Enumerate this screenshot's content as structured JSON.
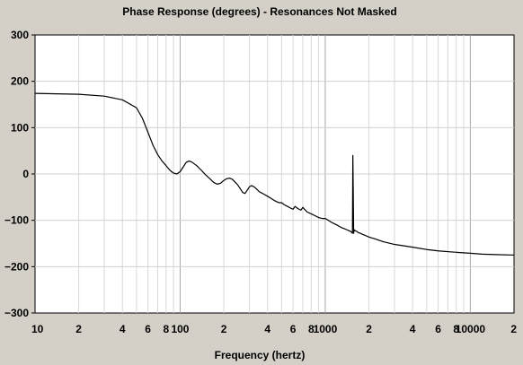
{
  "chart_data": {
    "type": "line",
    "title": "Phase Response (degrees) - Resonances Not Masked",
    "xlabel": "Frequency (hertz)",
    "ylabel": "",
    "x_scale": "log",
    "xlim": [
      10,
      20000
    ],
    "ylim": [
      -300,
      300
    ],
    "grid": true,
    "y_ticks": [
      300,
      200,
      100,
      0,
      -100,
      -200,
      -300
    ],
    "y_tick_labels": [
      "300",
      "200",
      "100",
      "0",
      "−100",
      "−200",
      "−300"
    ],
    "x_ticks": [
      10,
      20,
      40,
      60,
      80,
      100,
      200,
      400,
      600,
      800,
      1000,
      2000,
      4000,
      6000,
      8000,
      10000,
      20000
    ],
    "x_tick_labels": [
      "10",
      "2",
      "4",
      "6",
      "8",
      "100",
      "2",
      "4",
      "6",
      "8",
      "1000",
      "2",
      "4",
      "6",
      "8",
      "10000",
      "2"
    ],
    "series": [
      {
        "color": "#000000",
        "x": [
          10,
          20,
          30,
          40,
          50,
          55,
          60,
          65,
          70,
          75,
          80,
          85,
          90,
          95,
          100,
          105,
          110,
          115,
          120,
          130,
          140,
          150,
          160,
          170,
          180,
          190,
          200,
          210,
          220,
          230,
          240,
          250,
          260,
          270,
          280,
          290,
          300,
          310,
          320,
          330,
          340,
          350,
          360,
          380,
          400,
          420,
          450,
          480,
          500,
          520,
          550,
          580,
          600,
          620,
          650,
          680,
          700,
          750,
          800,
          850,
          900,
          950,
          1000,
          1050,
          1100,
          1150,
          1200,
          1250,
          1300,
          1350,
          1400,
          1450,
          1500,
          1520,
          1540,
          1550,
          1560,
          1570,
          1580,
          1600,
          1650,
          1700,
          1750,
          1800,
          1900,
          2000,
          2200,
          2500,
          3000,
          4000,
          5000,
          6000,
          8000,
          10000,
          12000,
          15000,
          20000
        ],
        "y": [
          174,
          172,
          168,
          160,
          143,
          120,
          90,
          62,
          42,
          28,
          18,
          8,
          2,
          0,
          5,
          15,
          25,
          28,
          26,
          18,
          8,
          -2,
          -10,
          -18,
          -22,
          -20,
          -14,
          -10,
          -9,
          -12,
          -18,
          -24,
          -32,
          -40,
          -42,
          -35,
          -28,
          -25,
          -27,
          -30,
          -34,
          -38,
          -40,
          -44,
          -48,
          -52,
          -58,
          -62,
          -62,
          -66,
          -70,
          -74,
          -76,
          -70,
          -75,
          -78,
          -72,
          -82,
          -86,
          -90,
          -94,
          -96,
          -96,
          -100,
          -104,
          -107,
          -110,
          -113,
          -116,
          -118,
          -120,
          -122,
          -124,
          -126,
          -128,
          40,
          -40,
          -128,
          -120,
          -122,
          -124,
          -127,
          -128,
          -130,
          -133,
          -136,
          -140,
          -146,
          -152,
          -158,
          -163,
          -166,
          -169,
          -171,
          -173,
          -174,
          -175
        ]
      }
    ]
  }
}
